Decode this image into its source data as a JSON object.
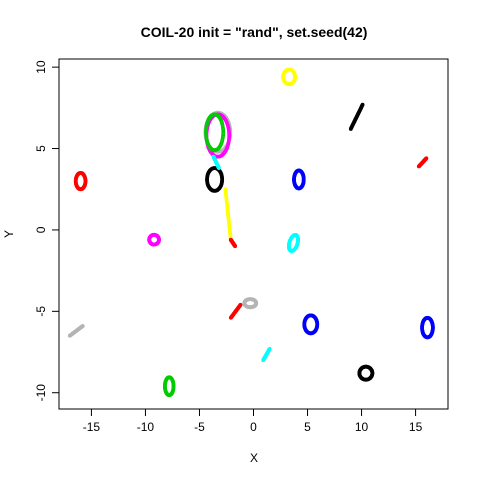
{
  "chart_data": {
    "type": "scatter",
    "title": "COIL-20 init = \"rand\", set.seed(42)",
    "xlabel": "X",
    "ylabel": "Y",
    "xlim": [
      -18,
      18
    ],
    "ylim": [
      -11,
      10.5
    ],
    "x_ticks": [
      -15,
      -10,
      -5,
      0,
      5,
      10,
      15
    ],
    "y_ticks": [
      -10,
      -5,
      0,
      5,
      10
    ],
    "x_tick_labels": [
      "-15",
      "-10",
      "-5",
      "0",
      "5",
      "10",
      "15"
    ],
    "y_tick_labels": [
      "-10",
      "-5",
      "0",
      "5",
      "10"
    ],
    "grid": false,
    "legend": "none",
    "clusters": [
      {
        "color": "#FFFF00",
        "shape": "ring",
        "cx": 3.3,
        "cy": 9.4,
        "rx": 0.55,
        "ry": 0.45,
        "angle": 0
      },
      {
        "color": "#000000",
        "shape": "segment",
        "x1": 9.0,
        "y1": 6.2,
        "x2": 10.1,
        "y2": 7.7
      },
      {
        "color": "#B4B4B4",
        "shape": "ring",
        "cx": -3.3,
        "cy": 6.0,
        "rx": 1.15,
        "ry": 1.2,
        "angle": 0
      },
      {
        "color": "#FF00FF",
        "shape": "ring",
        "cx": -3.3,
        "cy": 5.8,
        "rx": 1.05,
        "ry": 1.3,
        "angle": 0
      },
      {
        "color": "#00CD00",
        "shape": "ring",
        "cx": -3.6,
        "cy": 6.0,
        "rx": 0.8,
        "ry": 1.1,
        "angle": 0
      },
      {
        "color": "#FF0000",
        "shape": "ring",
        "cx": -16.0,
        "cy": 3.0,
        "rx": 0.45,
        "ry": 0.5,
        "angle": 0
      },
      {
        "color": "#000000",
        "shape": "ring",
        "cx": -3.6,
        "cy": 3.1,
        "rx": 0.7,
        "ry": 0.7,
        "angle": 0
      },
      {
        "color": "#0000FF",
        "shape": "ring",
        "cx": 4.2,
        "cy": 3.1,
        "rx": 0.45,
        "ry": 0.55,
        "angle": 0
      },
      {
        "color": "#FF0000",
        "shape": "segment",
        "x1": 15.3,
        "y1": 3.9,
        "x2": 16.0,
        "y2": 4.4
      },
      {
        "color": "#00FFFF",
        "shape": "segment",
        "x1": -3.7,
        "y1": 4.5,
        "x2": -3.2,
        "y2": 3.8
      },
      {
        "color": "#FFFF00",
        "shape": "segment",
        "x1": -2.6,
        "y1": 2.5,
        "x2": -2.1,
        "y2": -0.6
      },
      {
        "color": "#FF0000",
        "shape": "segment",
        "x1": -2.1,
        "y1": -0.6,
        "x2": -1.7,
        "y2": -1.0
      },
      {
        "color": "#FF00FF",
        "shape": "ring",
        "cx": -9.2,
        "cy": -0.6,
        "rx": 0.45,
        "ry": 0.3,
        "angle": 0
      },
      {
        "color": "#00FFFF",
        "shape": "ring",
        "cx": 3.7,
        "cy": -0.8,
        "rx": 0.35,
        "ry": 0.55,
        "angle": -35
      },
      {
        "color": "#B4B4B4",
        "shape": "ring",
        "cx": -0.3,
        "cy": -4.5,
        "rx": 0.55,
        "ry": 0.25,
        "angle": 0
      },
      {
        "color": "#FF0000",
        "shape": "segment",
        "x1": -2.1,
        "y1": -5.4,
        "x2": -1.2,
        "y2": -4.6
      },
      {
        "color": "#0000FF",
        "shape": "ring",
        "cx": 5.3,
        "cy": -5.8,
        "rx": 0.6,
        "ry": 0.55,
        "angle": 0
      },
      {
        "color": "#0000FF",
        "shape": "ring",
        "cx": 16.1,
        "cy": -6.0,
        "rx": 0.5,
        "ry": 0.6,
        "angle": 0
      },
      {
        "color": "#B4B4B4",
        "shape": "segment",
        "x1": -17.0,
        "y1": -6.5,
        "x2": -15.8,
        "y2": -5.9
      },
      {
        "color": "#00FFFF",
        "shape": "segment",
        "x1": 0.9,
        "y1": -8.0,
        "x2": 1.5,
        "y2": -7.3
      },
      {
        "color": "#000000",
        "shape": "ring",
        "cx": 10.4,
        "cy": -8.8,
        "rx": 0.6,
        "ry": 0.4,
        "angle": 0
      },
      {
        "color": "#00CD00",
        "shape": "ring",
        "cx": -7.8,
        "cy": -9.6,
        "rx": 0.4,
        "ry": 0.55,
        "angle": 0
      }
    ]
  }
}
